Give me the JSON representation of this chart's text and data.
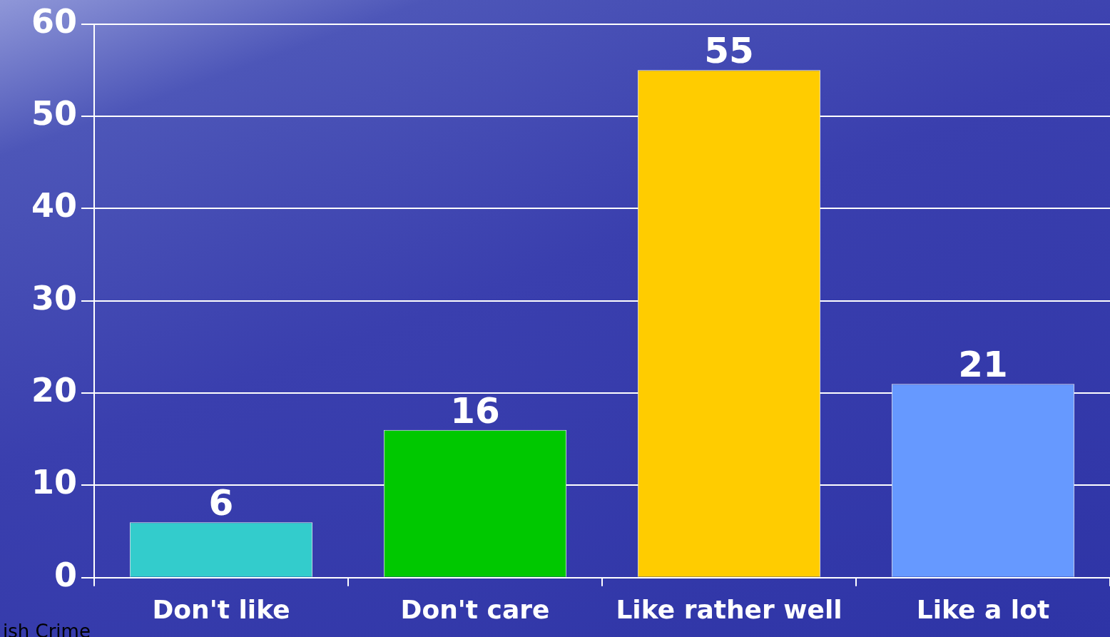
{
  "chart_data": {
    "type": "bar",
    "categories": [
      "Don't like",
      "Don't care",
      "Like rather well",
      "Like a lot"
    ],
    "values": [
      6,
      16,
      55,
      21
    ],
    "colors": [
      "#33cccc",
      "#00c800",
      "#ffcc00",
      "#6699ff"
    ],
    "ylim": [
      0,
      60
    ],
    "yticks": [
      0,
      10,
      20,
      30,
      40,
      50,
      60
    ],
    "grid": "y",
    "data_labels": true,
    "annotations": [
      "ish Crime"
    ]
  }
}
